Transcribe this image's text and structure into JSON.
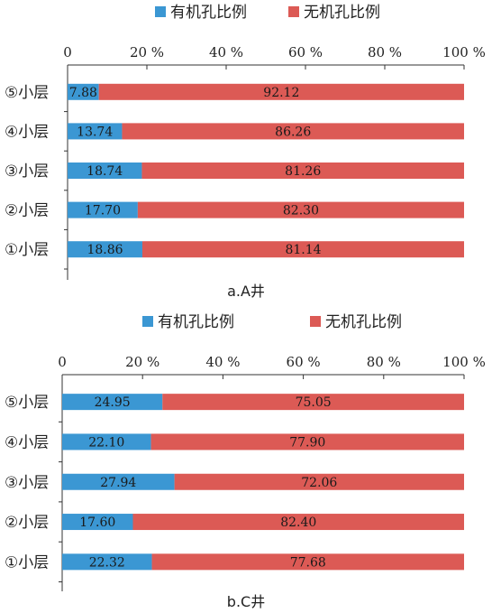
{
  "chart_data": [
    {
      "type": "bar",
      "orientation": "horizontal",
      "stacked": true,
      "categories": [
        "⑤小层",
        "④小层",
        "③小层",
        "②小层",
        "①小层"
      ],
      "series": [
        {
          "name": "有机孔比例",
          "values": [
            7.88,
            13.74,
            18.74,
            17.7,
            18.86
          ],
          "color": "#3b97d3"
        },
        {
          "name": "无机孔比例",
          "values": [
            92.12,
            86.26,
            81.26,
            82.3,
            81.14
          ],
          "color": "#dc5a55"
        }
      ],
      "xlim": [
        0,
        100
      ],
      "xticks": [
        "0",
        "20 %",
        "40 %",
        "60 %",
        "80 %",
        "100 %"
      ],
      "axis_position": "top",
      "legend": "top",
      "grid": false,
      "caption": "a.A井"
    },
    {
      "type": "bar",
      "orientation": "horizontal",
      "stacked": true,
      "categories": [
        "⑤小层",
        "④小层",
        "③小层",
        "②小层",
        "①小层"
      ],
      "series": [
        {
          "name": "有机孔比例",
          "values": [
            24.95,
            22.1,
            27.94,
            17.6,
            22.32
          ],
          "color": "#3b97d3"
        },
        {
          "name": "无机孔比例",
          "values": [
            75.05,
            77.9,
            72.06,
            82.4,
            77.68
          ],
          "color": "#dc5a55"
        }
      ],
      "xlim": [
        0,
        100
      ],
      "xticks": [
        "0",
        "20 %",
        "40 %",
        "60 %",
        "80 %",
        "100 %"
      ],
      "axis_position": "top",
      "legend": "top",
      "grid": false,
      "caption": "b.C井"
    }
  ]
}
